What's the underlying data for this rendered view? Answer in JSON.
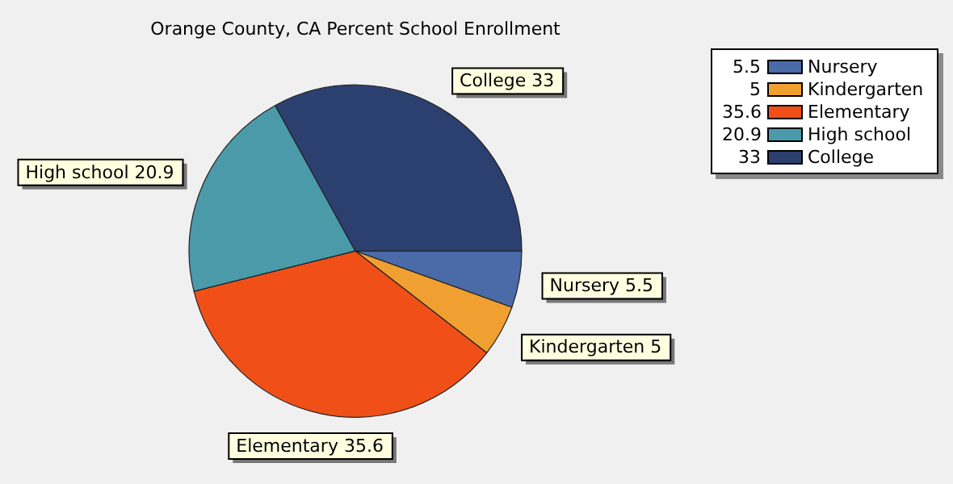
{
  "chart_data": {
    "type": "pie",
    "title": "Orange County, CA Percent School Enrollment",
    "categories": [
      "Nursery",
      "Kindergarten",
      "Elementary",
      "High school",
      "College"
    ],
    "values": [
      5.5,
      5,
      35.6,
      20.9,
      33
    ],
    "colors": [
      "#4a6aa8",
      "#f0a030",
      "#f05018",
      "#4a9aaa",
      "#2c4070"
    ],
    "value_labels": [
      "5.5",
      "5",
      "35.6",
      "20.9",
      "33"
    ],
    "legend": "top right"
  }
}
